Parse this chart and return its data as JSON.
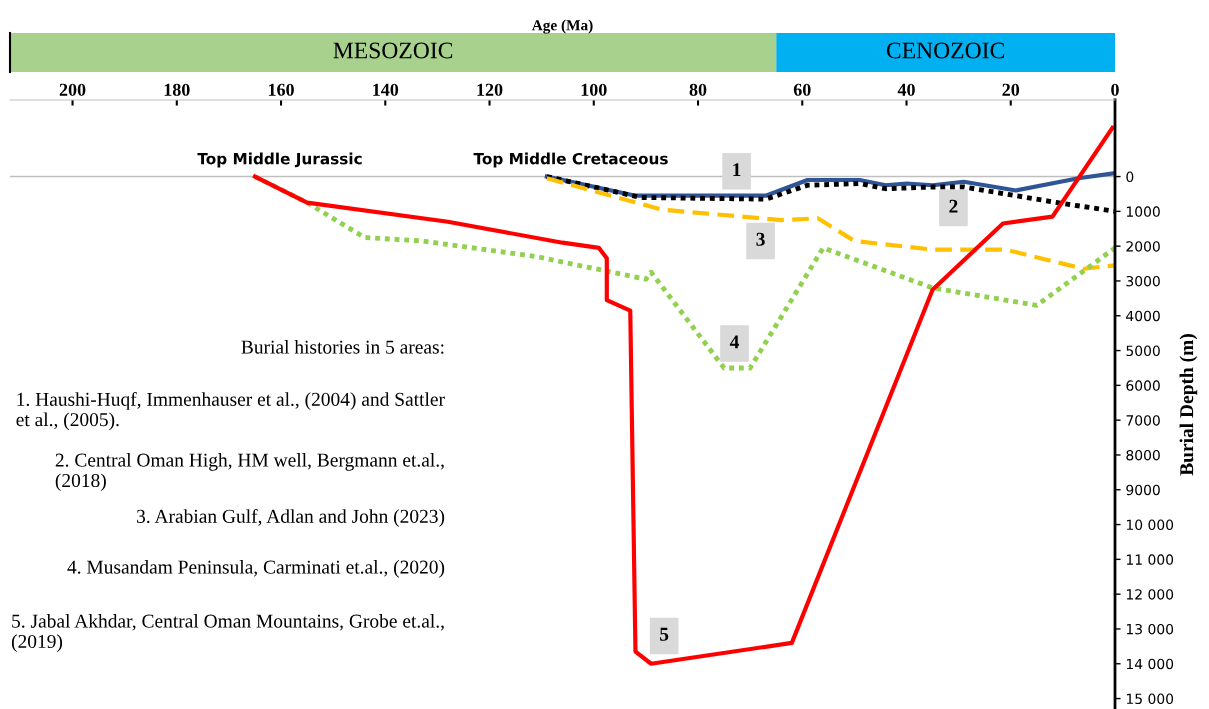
{
  "chart_data": [
    {
      "type": "bar",
      "orientation": "horizontal",
      "stacked": true,
      "categories": [
        null
      ],
      "xlabel": "Age (Ma)",
      "xlim": [
        212,
        0
      ],
      "xticks": [
        200,
        180,
        160,
        140,
        120,
        100,
        80,
        60,
        40,
        20,
        0
      ],
      "series": [
        {
          "name": "CENOZOIC",
          "color": "#00b0f0",
          "values": [
            65
          ]
        },
        {
          "name": "MESOZOIC",
          "color": "#a9d18e",
          "values": [
            147
          ]
        }
      ]
    },
    {
      "type": "line",
      "ylabel": "Burial Depth (m)",
      "xlim": [
        212,
        0
      ],
      "xticks": [
        200,
        180,
        160,
        140,
        120,
        100,
        80,
        60,
        40,
        20,
        0
      ],
      "ylim": [
        15300,
        -2200
      ],
      "yticks": [
        0,
        1000,
        2000,
        3000,
        4000,
        5000,
        6000,
        7000,
        8000,
        9000,
        {
          "value": 10000,
          "label": "10 000"
        },
        {
          "value": 11000,
          "label": "11 000"
        },
        {
          "value": 12000,
          "label": "12 000"
        },
        {
          "value": 13000,
          "label": "13 000"
        },
        {
          "value": 14000,
          "label": "14 000"
        },
        {
          "value": 15000,
          "label": "15 000"
        }
      ],
      "marker": "none",
      "tick_labels": "y",
      "series": [
        {
          "color": "#2f5597",
          "line_style": "solid",
          "x": [
            109,
            92,
            67,
            59,
            49,
            44,
            40,
            35,
            29,
            19,
            7,
            0
          ],
          "values": [
            0,
            550,
            550,
            100,
            100,
            250,
            200,
            250,
            150,
            400,
            50,
            -100
          ]
        },
        {
          "color": "#000000",
          "line_style": "dotted",
          "x": [
            109,
            91,
            67,
            59,
            49,
            44,
            35,
            29,
            19,
            11,
            0
          ],
          "values": [
            0,
            600,
            650,
            250,
            200,
            350,
            300,
            300,
            550,
            750,
            1000
          ]
        },
        {
          "color": "#ffc000",
          "line_style": "dashed",
          "x": [
            109,
            93,
            87,
            64,
            57,
            50,
            35,
            21,
            6,
            0
          ],
          "values": [
            50,
            700,
            950,
            1250,
            1200,
            1850,
            2100,
            2100,
            2650,
            2550
          ]
        },
        {
          "color": "#92d050",
          "line_style": "dotted",
          "x": [
            165,
            155,
            144,
            133,
            111,
            90,
            89,
            75,
            70,
            56,
            35,
            15,
            0
          ],
          "values": [
            0,
            750,
            1750,
            1850,
            2300,
            2950,
            2750,
            5500,
            5500,
            2050,
            3200,
            3700,
            2050
          ]
        },
        {
          "color": "#ff0000",
          "line_style": "solid",
          "x": [
            165,
            155,
            128,
            106,
            99,
            97.5,
            97.5,
            93,
            92,
            89,
            62,
            35,
            21.5,
            12,
            0.5
          ],
          "values": [
            0,
            750,
            1300,
            1900,
            2050,
            2350,
            3550,
            3850,
            13650,
            14000,
            13400,
            3250,
            1350,
            1150,
            -1400
          ]
        }
      ],
      "ref_lines": [
        {
          "axis": "y",
          "value": 0,
          "color": "#bfbfbf"
        }
      ],
      "annotations": [
        "Top Middle Jurassic",
        "Top Middle Cretaceous",
        {
          "text": "1",
          "x": 72.6,
          "y": -150
        },
        {
          "text": "2",
          "x": 31,
          "y": 900
        },
        {
          "text": "3",
          "x": 68,
          "y": 1850
        },
        {
          "text": "4",
          "x": 73,
          "y": 4800
        },
        {
          "text": "5",
          "x": 86.5,
          "y": 13200
        },
        "Burial histories in 5 areas:",
        "1. Haushi-Huqf, Immenhauser et al., (2004) and Sattler et al., (2005).",
        "2. Central Oman High, HM well, Bergmann et.al., (2018)",
        "3. Arabian Gulf, Adlan and John (2023)",
        "4. Musandam Peninsula, Carminati et.al., (2020)",
        "5. Jabal Akhdar, Central Oman Mountains, Grobe et.al., (2019)"
      ]
    }
  ]
}
